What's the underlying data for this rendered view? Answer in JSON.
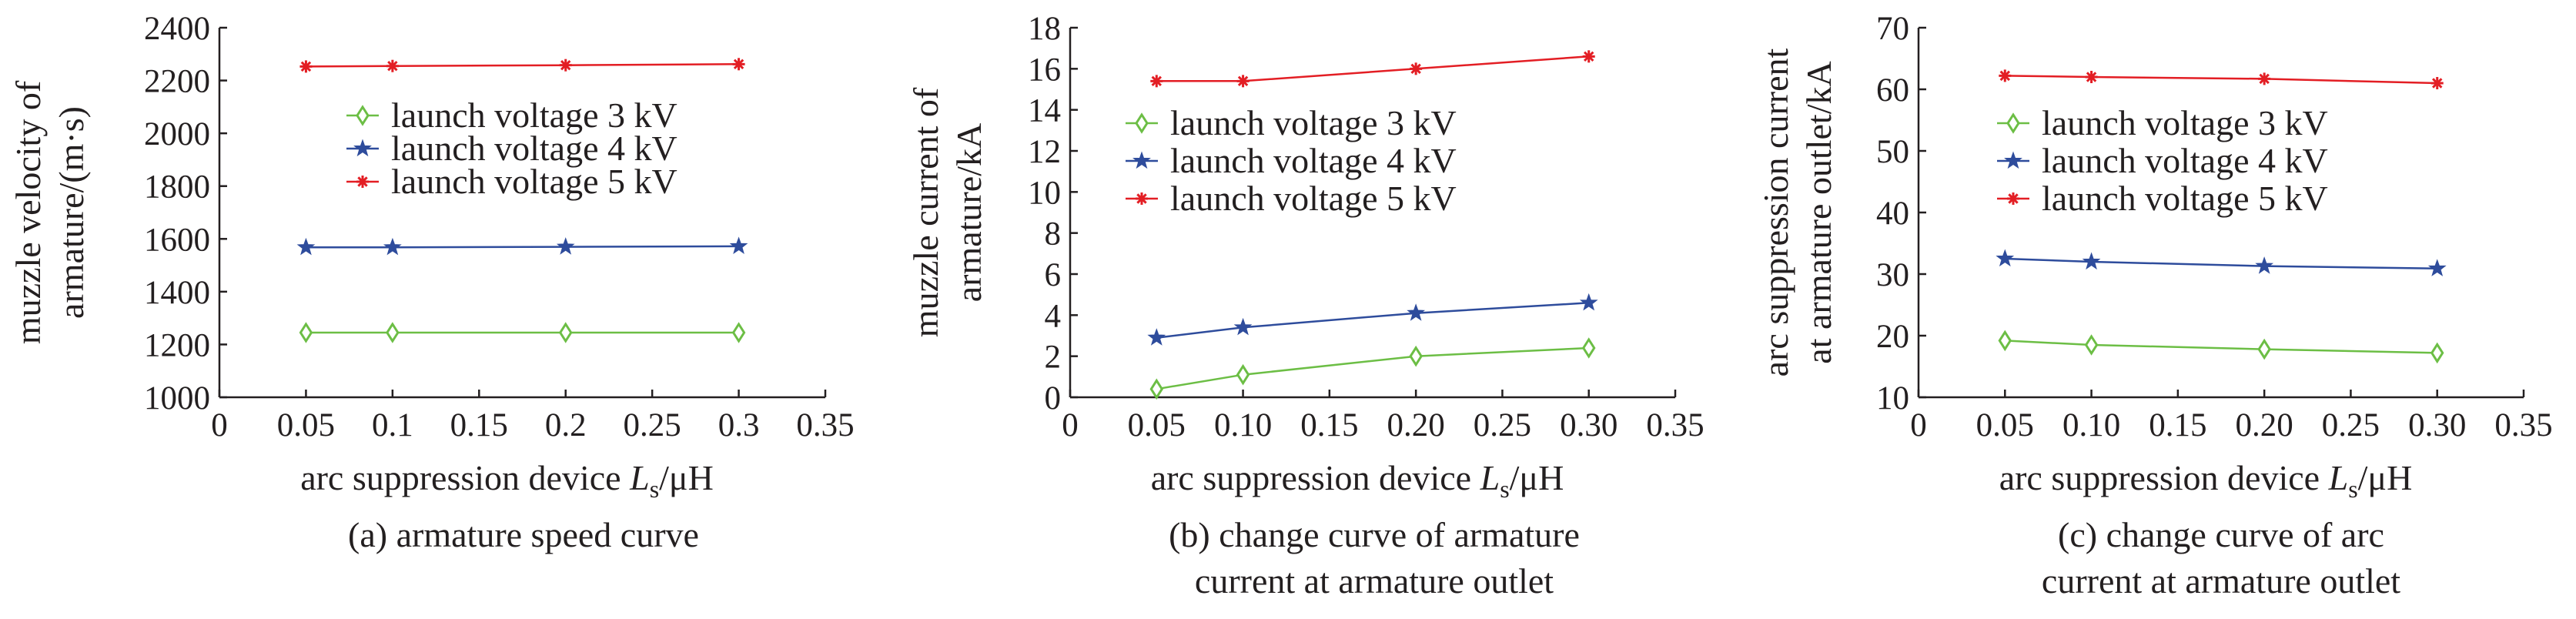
{
  "chart_data": [
    {
      "type": "line",
      "caption_lines": [
        "(a) armature speed curve"
      ],
      "xlabel": {
        "prefix": "arc suppression device ",
        "var": "L",
        "sub": "s",
        "suffix": "/μH"
      },
      "ylabel_lines": [
        "muzzle velocity of",
        "armature/(m·s)"
      ],
      "xlim": [
        0,
        0.35
      ],
      "ylim": [
        1000,
        2400
      ],
      "x_ticks": [
        "0",
        "0.05",
        "0.1",
        "0.15",
        "0.2",
        "0.25",
        "0.3",
        "0.35"
      ],
      "y_ticks": [
        "1000",
        "1200",
        "1400",
        "1600",
        "1800",
        "2000",
        "2200",
        "2400"
      ],
      "legend_position": "upper-middle",
      "grid": false,
      "x": [
        0.05,
        0.1,
        0.2,
        0.3
      ],
      "series": [
        {
          "name": "launch voltage 3 kV",
          "color": "#6cbe45",
          "marker": "diamond",
          "values": [
            1245,
            1245,
            1245,
            1245
          ]
        },
        {
          "name": "launch voltage 4 kV",
          "color": "#2e4c9c",
          "marker": "star",
          "values": [
            1568,
            1568,
            1570,
            1572
          ]
        },
        {
          "name": "launch voltage 5 kV",
          "color": "#e31e24",
          "marker": "asterisk",
          "values": [
            2253,
            2255,
            2258,
            2262
          ]
        }
      ]
    },
    {
      "type": "line",
      "caption_lines": [
        "(b) change curve of armature",
        "current at armature outlet"
      ],
      "xlabel": {
        "prefix": "arc suppression device ",
        "var": "L",
        "sub": "s",
        "suffix": "/μH"
      },
      "ylabel_lines": [
        "muzzle current of",
        "armature/kA"
      ],
      "xlim": [
        0,
        0.35
      ],
      "ylim": [
        0,
        18
      ],
      "x_ticks": [
        "0",
        "0.05",
        "0.10",
        "0.15",
        "0.20",
        "0.25",
        "0.30",
        "0.35"
      ],
      "y_ticks": [
        "0",
        "2",
        "4",
        "6",
        "8",
        "10",
        "12",
        "14",
        "16",
        "18"
      ],
      "legend_position": "middle",
      "grid": false,
      "x": [
        0.05,
        0.1,
        0.2,
        0.3
      ],
      "series": [
        {
          "name": "launch voltage 3 kV",
          "color": "#6cbe45",
          "marker": "diamond",
          "values": [
            0.4,
            1.1,
            2.0,
            2.4
          ]
        },
        {
          "name": "launch voltage 4 kV",
          "color": "#2e4c9c",
          "marker": "star",
          "values": [
            2.9,
            3.4,
            4.1,
            4.6
          ]
        },
        {
          "name": "launch voltage 5 kV",
          "color": "#e31e24",
          "marker": "asterisk",
          "values": [
            15.4,
            15.4,
            16.0,
            16.6
          ]
        }
      ]
    },
    {
      "type": "line",
      "caption_lines": [
        "(c) change curve of arc",
        "current at armature outlet"
      ],
      "xlabel": {
        "prefix": "arc suppression device ",
        "var": "L",
        "sub": "s",
        "suffix": "/μH"
      },
      "ylabel_lines": [
        "arc suppression current",
        "at armature outlet/kA"
      ],
      "xlim": [
        0,
        0.35
      ],
      "ylim": [
        10,
        70
      ],
      "x_ticks": [
        "0",
        "0.05",
        "0.10",
        "0.15",
        "0.20",
        "0.25",
        "0.30",
        "0.35"
      ],
      "y_ticks": [
        "10",
        "20",
        "30",
        "40",
        "50",
        "60",
        "70"
      ],
      "legend_position": "middle",
      "grid": false,
      "x": [
        0.05,
        0.1,
        0.2,
        0.3
      ],
      "series": [
        {
          "name": "launch voltage 3 kV",
          "color": "#6cbe45",
          "marker": "diamond",
          "values": [
            19.2,
            18.5,
            17.8,
            17.2
          ]
        },
        {
          "name": "launch voltage 4 kV",
          "color": "#2e4c9c",
          "marker": "star",
          "values": [
            32.5,
            32.0,
            31.3,
            30.9
          ]
        },
        {
          "name": "launch voltage 5 kV",
          "color": "#e31e24",
          "marker": "asterisk",
          "values": [
            62.2,
            62.0,
            61.7,
            61.0
          ]
        }
      ]
    }
  ]
}
